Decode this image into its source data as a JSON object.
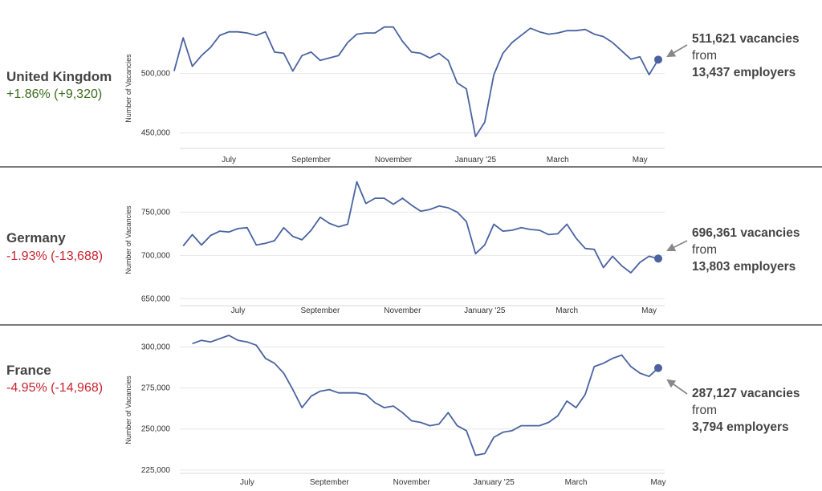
{
  "colors": {
    "line": "#4a63a0",
    "positive": "#3b6b1d",
    "negative": "#c8242f",
    "arrow": "#888888",
    "text": "#444444"
  },
  "chart_data": [
    {
      "type": "line",
      "country": "United Kingdom",
      "change": "+1.86% (+9,320)",
      "change_sign": "positive",
      "callout_value": "511,621 vacancies",
      "callout_from": " from",
      "callout_employers": "13,437 employers",
      "ylabel": "Number of Vacancies",
      "yticks": [
        {
          "v": 450000,
          "label": "450,000"
        },
        {
          "v": 500000,
          "label": "500,000"
        }
      ],
      "xticks": [
        {
          "i": 6,
          "label": "July"
        },
        {
          "i": 15,
          "label": "September"
        },
        {
          "i": 24,
          "label": "November"
        },
        {
          "i": 33,
          "label": "January '25"
        },
        {
          "i": 42,
          "label": "March"
        },
        {
          "i": 51,
          "label": "May"
        }
      ],
      "ylim": [
        437000,
        555000
      ],
      "values": [
        502000,
        530000,
        506000,
        515000,
        522000,
        532000,
        535000,
        535000,
        534000,
        532000,
        535000,
        518000,
        517000,
        502000,
        515000,
        518000,
        511000,
        513000,
        515000,
        526000,
        533000,
        534000,
        534000,
        539000,
        539000,
        527000,
        518000,
        517000,
        513000,
        517000,
        511000,
        492000,
        487000,
        447000,
        459000,
        499000,
        517000,
        526000,
        532000,
        538000,
        535000,
        533000,
        534000,
        536000,
        536000,
        537000,
        533000,
        531000,
        526000,
        519000,
        512000,
        514000,
        499000,
        511621
      ]
    },
    {
      "type": "line",
      "country": "Germany",
      "change": "-1.93% (-13,688)",
      "change_sign": "negative",
      "callout_value": "696,361 vacancies",
      "callout_from": " from",
      "callout_employers": "13,803 employers",
      "ylabel": "Number of Vacancies",
      "yticks": [
        {
          "v": 650000,
          "label": "650,000"
        },
        {
          "v": 700000,
          "label": "700,000"
        },
        {
          "v": 750000,
          "label": "750,000"
        }
      ],
      "xticks": [
        {
          "i": 6,
          "label": "July"
        },
        {
          "i": 15,
          "label": "September"
        },
        {
          "i": 24,
          "label": "November"
        },
        {
          "i": 33,
          "label": "January '25"
        },
        {
          "i": 42,
          "label": "March"
        },
        {
          "i": 51,
          "label": "May"
        }
      ],
      "ylim": [
        642000,
        792000
      ],
      "values": [
        711000,
        724000,
        712000,
        723000,
        728000,
        727000,
        731000,
        732000,
        712000,
        714000,
        717000,
        732000,
        722000,
        718000,
        729000,
        744000,
        737000,
        733000,
        736000,
        785000,
        760000,
        766000,
        766000,
        759000,
        766000,
        758000,
        751000,
        753000,
        757000,
        755000,
        750000,
        739000,
        702000,
        712000,
        736000,
        728000,
        729000,
        732000,
        730000,
        729000,
        724000,
        725000,
        736000,
        720000,
        708000,
        707000,
        686000,
        699000,
        688000,
        680000,
        692000,
        699000,
        696361
      ]
    },
    {
      "type": "line",
      "country": "France",
      "change": "-4.95% (-14,968)",
      "change_sign": "negative",
      "callout_value": "287,127 vacancies",
      "callout_from": " from",
      "callout_employers": "3,794 employers",
      "ylabel": "Number of Vacancies",
      "yticks": [
        {
          "v": 225000,
          "label": "225,000"
        },
        {
          "v": 250000,
          "label": "250,000"
        },
        {
          "v": 275000,
          "label": "275,000"
        },
        {
          "v": 300000,
          "label": "300,000"
        }
      ],
      "xticks": [
        {
          "i": 6,
          "label": "July"
        },
        {
          "i": 15,
          "label": "September"
        },
        {
          "i": 24,
          "label": "November"
        },
        {
          "i": 33,
          "label": "January '25"
        },
        {
          "i": 42,
          "label": "March"
        },
        {
          "i": 51,
          "label": "May"
        }
      ],
      "ylim": [
        223000,
        308000
      ],
      "values": [
        302000,
        304000,
        303000,
        305000,
        307000,
        304000,
        303000,
        301000,
        293000,
        290000,
        284000,
        274000,
        263000,
        270000,
        273000,
        274000,
        272000,
        272000,
        272000,
        271000,
        266000,
        263000,
        264000,
        260000,
        255000,
        254000,
        252000,
        253000,
        260000,
        252000,
        249000,
        234000,
        235000,
        245000,
        248000,
        249000,
        252000,
        252000,
        252000,
        254000,
        258000,
        267000,
        263000,
        271000,
        288000,
        290000,
        293000,
        295000,
        288000,
        284000,
        282000,
        287127
      ]
    }
  ]
}
